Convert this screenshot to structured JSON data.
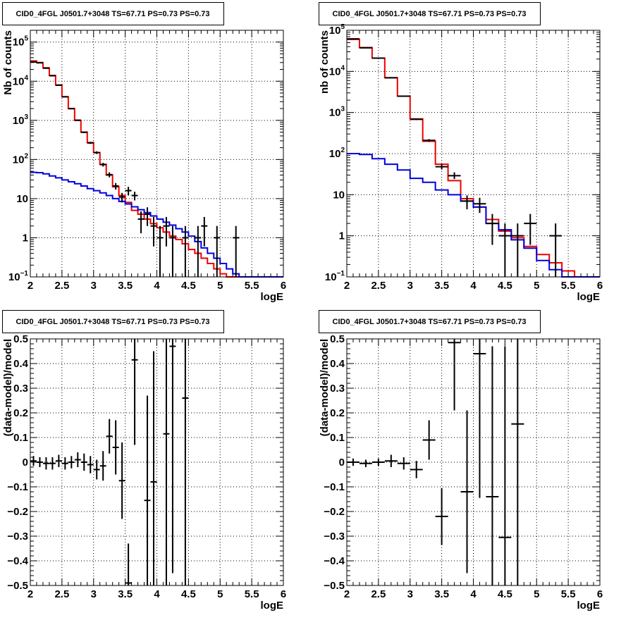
{
  "colors": {
    "data": "#000000",
    "total_model": "#ee0000",
    "source_model": "#0000dd"
  },
  "chart_data": [
    {
      "panel": "top-left",
      "type": "line",
      "title": "CID0_4FGL J0501.7+3048 TS=67.71 PS=0.73 PS=0.73",
      "xlabel": "logE",
      "ylabel": "Nb of counts",
      "xlim": [
        2,
        6
      ],
      "ylim": [
        0.1,
        200000
      ],
      "ylog": true,
      "grid": true,
      "xticks": [
        "2",
        "2.5",
        "3",
        "3.5",
        "4",
        "4.5",
        "5",
        "5.5",
        "6"
      ],
      "yticks": [
        {
          "v": 0.1,
          "base": "10",
          "exp": "−1"
        },
        {
          "v": 1,
          "label": "1"
        },
        {
          "v": 10,
          "label": "10"
        },
        {
          "v": 100,
          "base": "10",
          "exp": "2"
        },
        {
          "v": 1000,
          "base": "10",
          "exp": "3"
        },
        {
          "v": 10000,
          "base": "10",
          "exp": "4"
        },
        {
          "v": 100000,
          "base": "10",
          "exp": "5"
        }
      ],
      "bin_edges": [
        2.0,
        2.1,
        2.2,
        2.3,
        2.4,
        2.5,
        2.6,
        2.7,
        2.8,
        2.9,
        3.0,
        3.1,
        3.2,
        3.3,
        3.4,
        3.5,
        3.6,
        3.7,
        3.8,
        3.9,
        4.0,
        4.1,
        4.2,
        4.3,
        4.4,
        4.5,
        4.6,
        4.7,
        4.8,
        4.9,
        5.0,
        5.1,
        5.2,
        5.3,
        5.4,
        5.5,
        5.6,
        5.7,
        5.8,
        5.9,
        6.0
      ],
      "series": [
        {
          "style": "total_model",
          "values": [
            33000,
            30000,
            22000,
            14000,
            8000,
            4000,
            2000,
            1000,
            500,
            270,
            150,
            75,
            40,
            20,
            12,
            8,
            5,
            4,
            3,
            2.3,
            1.8,
            1.4,
            1.1,
            0.9,
            0.7,
            0.5,
            0.4,
            0.3,
            0.22,
            0.16,
            0.12,
            0.1,
            0.1,
            0.1,
            0.1,
            0.1,
            0.1,
            0.1,
            0.1,
            0.1
          ]
        },
        {
          "style": "source_model",
          "values": [
            47,
            46,
            43,
            38,
            34,
            30,
            27,
            24,
            21,
            18,
            16,
            14,
            12,
            10,
            8.5,
            7.3,
            6.2,
            5.2,
            4.4,
            3.6,
            3.0,
            2.5,
            2.1,
            1.7,
            1.4,
            1.1,
            0.8,
            0.55,
            0.4,
            0.3,
            0.22,
            0.16,
            0.12,
            0.1,
            0.1,
            0.1,
            0.1,
            0.1,
            0.1,
            0.1
          ]
        }
      ],
      "points": [
        {
          "x": 2.05,
          "y": 31000,
          "lo": 30800,
          "hi": 31200
        },
        {
          "x": 2.15,
          "y": 29500,
          "lo": 29300,
          "hi": 29700
        },
        {
          "x": 2.25,
          "y": 21500,
          "lo": 21300,
          "hi": 21700
        },
        {
          "x": 2.35,
          "y": 13800,
          "lo": 13600,
          "hi": 14000
        },
        {
          "x": 2.45,
          "y": 7900,
          "lo": 7800,
          "hi": 8000
        },
        {
          "x": 2.55,
          "y": 4000,
          "lo": 3940,
          "hi": 4060
        },
        {
          "x": 2.65,
          "y": 1990,
          "lo": 1950,
          "hi": 2030
        },
        {
          "x": 2.75,
          "y": 1010,
          "lo": 980,
          "hi": 1040
        },
        {
          "x": 2.85,
          "y": 495,
          "lo": 475,
          "hi": 515
        },
        {
          "x": 2.95,
          "y": 265,
          "lo": 250,
          "hi": 280
        },
        {
          "x": 3.05,
          "y": 150,
          "lo": 138,
          "hi": 162
        },
        {
          "x": 3.15,
          "y": 74,
          "lo": 66,
          "hi": 82
        },
        {
          "x": 3.25,
          "y": 41,
          "lo": 35,
          "hi": 47
        },
        {
          "x": 3.35,
          "y": 21,
          "lo": 17,
          "hi": 25
        },
        {
          "x": 3.45,
          "y": 11,
          "lo": 8,
          "hi": 14
        },
        {
          "x": 3.55,
          "y": 16,
          "lo": 12,
          "hi": 20
        },
        {
          "x": 3.65,
          "y": 12,
          "lo": 9,
          "hi": 15
        },
        {
          "x": 3.75,
          "y": 3,
          "lo": 1.3,
          "hi": 4.7
        },
        {
          "x": 3.85,
          "y": 4,
          "lo": 2,
          "hi": 6
        },
        {
          "x": 3.95,
          "y": 2,
          "lo": 0.6,
          "hi": 3.4
        },
        {
          "x": 4.05,
          "y": 1,
          "lo": 0.1,
          "hi": 2
        },
        {
          "x": 4.15,
          "y": 2,
          "lo": 0.6,
          "hi": 3.4
        },
        {
          "x": 4.25,
          "y": 1,
          "lo": 0.1,
          "hi": 2
        },
        {
          "x": 4.45,
          "y": 1,
          "lo": 0.1,
          "hi": 2
        },
        {
          "x": 4.65,
          "y": 1,
          "lo": 0.1,
          "hi": 2
        },
        {
          "x": 4.75,
          "y": 2,
          "lo": 0.6,
          "hi": 3.4
        },
        {
          "x": 4.95,
          "y": 1,
          "lo": 0.1,
          "hi": 2
        },
        {
          "x": 5.25,
          "y": 1,
          "lo": 0.1,
          "hi": 2
        }
      ]
    },
    {
      "panel": "top-right",
      "type": "line",
      "title": "CID0_4FGL J0501.7+3048 TS=67.71 PS=0.73 PS=0.73",
      "xlabel": "logE",
      "ylabel": "nb of counts",
      "xlim": [
        2,
        6
      ],
      "ylim": [
        0.1,
        100000
      ],
      "ylog": true,
      "grid": true,
      "xticks": [
        "2",
        "2.5",
        "3",
        "3.5",
        "4",
        "4.5",
        "5",
        "5.5",
        "6"
      ],
      "yticks": [
        {
          "v": 0.1,
          "base": "10",
          "exp": "−1"
        },
        {
          "v": 1,
          "label": "1"
        },
        {
          "v": 10,
          "label": "10"
        },
        {
          "v": 100,
          "base": "10",
          "exp": "2"
        },
        {
          "v": 1000,
          "base": "10",
          "exp": "3"
        },
        {
          "v": 10000,
          "base": "10",
          "exp": "4"
        },
        {
          "v": 100000,
          "base": "10",
          "exp": "5"
        }
      ],
      "bin_edges": [
        2.0,
        2.2,
        2.4,
        2.6,
        2.8,
        3.0,
        3.2,
        3.4,
        3.6,
        3.8,
        4.0,
        4.2,
        4.4,
        4.6,
        4.8,
        5.0,
        5.2,
        5.4,
        5.6,
        5.8,
        6.0
      ],
      "series": [
        {
          "style": "total_model",
          "values": [
            60000,
            38000,
            21000,
            7000,
            2500,
            700,
            200,
            55,
            22,
            8,
            5,
            2.5,
            1.3,
            0.9,
            0.55,
            0.35,
            0.22,
            0.14,
            0.1,
            0.1
          ]
        },
        {
          "style": "source_model",
          "values": [
            100,
            95,
            75,
            55,
            40,
            25,
            20,
            13,
            10,
            7,
            5,
            2,
            1.4,
            0.8,
            0.5,
            0.25,
            0.15,
            0.1,
            0.1,
            0.1
          ]
        }
      ],
      "points": [
        {
          "x": 2.1,
          "y": 62000,
          "lo": 61700,
          "hi": 62300
        },
        {
          "x": 2.3,
          "y": 37500,
          "lo": 37200,
          "hi": 37800
        },
        {
          "x": 2.5,
          "y": 21000,
          "lo": 20800,
          "hi": 21200
        },
        {
          "x": 2.7,
          "y": 7000,
          "lo": 6900,
          "hi": 7100
        },
        {
          "x": 2.9,
          "y": 2500,
          "lo": 2450,
          "hi": 2550
        },
        {
          "x": 3.1,
          "y": 680,
          "lo": 655,
          "hi": 705
        },
        {
          "x": 3.3,
          "y": 210,
          "lo": 195,
          "hi": 225
        },
        {
          "x": 3.5,
          "y": 48,
          "lo": 41,
          "hi": 55
        },
        {
          "x": 3.7,
          "y": 29,
          "lo": 24,
          "hi": 35
        },
        {
          "x": 3.9,
          "y": 7,
          "lo": 4.4,
          "hi": 9.6
        },
        {
          "x": 4.1,
          "y": 6,
          "lo": 3.6,
          "hi": 8.4
        },
        {
          "x": 4.3,
          "y": 2,
          "lo": 0.6,
          "hi": 3.4
        },
        {
          "x": 4.5,
          "y": 1,
          "lo": 0.1,
          "hi": 2
        },
        {
          "x": 4.7,
          "y": 1,
          "lo": 0.1,
          "hi": 2
        },
        {
          "x": 4.9,
          "y": 2,
          "lo": 0.6,
          "hi": 3.4
        },
        {
          "x": 5.3,
          "y": 1,
          "lo": 0.1,
          "hi": 2
        }
      ]
    },
    {
      "panel": "bottom-left",
      "type": "scatter",
      "title": "CID0_4FGL J0501.7+3048 TS=67.71 PS=0.73 PS=0.73",
      "xlabel": "logE",
      "ylabel": "(data-model)/model",
      "xlim": [
        2,
        6
      ],
      "ylim": [
        -0.5,
        0.5
      ],
      "ylog": false,
      "grid": true,
      "xticks": [
        "2",
        "2.5",
        "3",
        "3.5",
        "4",
        "4.5",
        "5",
        "5.5",
        "6"
      ],
      "yticks": [
        {
          "v": -0.5,
          "label": "−0.5"
        },
        {
          "v": -0.4,
          "label": "−0.4"
        },
        {
          "v": -0.3,
          "label": "−0.3"
        },
        {
          "v": -0.2,
          "label": "−0.2"
        },
        {
          "v": -0.1,
          "label": "−0.1"
        },
        {
          "v": 0,
          "label": "0"
        },
        {
          "v": 0.1,
          "label": "0.1"
        },
        {
          "v": 0.2,
          "label": "0.2"
        },
        {
          "v": 0.3,
          "label": "0.3"
        },
        {
          "v": 0.4,
          "label": "0.4"
        },
        {
          "v": 0.5,
          "label": "0.5"
        }
      ],
      "points": [
        {
          "x": 2.05,
          "y": 0.005,
          "lo": -0.015,
          "hi": 0.025
        },
        {
          "x": 2.15,
          "y": 0.0,
          "lo": -0.02,
          "hi": 0.02
        },
        {
          "x": 2.25,
          "y": -0.005,
          "lo": -0.03,
          "hi": 0.02
        },
        {
          "x": 2.35,
          "y": -0.005,
          "lo": -0.03,
          "hi": 0.02
        },
        {
          "x": 2.45,
          "y": 0.005,
          "lo": -0.02,
          "hi": 0.03
        },
        {
          "x": 2.55,
          "y": -0.005,
          "lo": -0.03,
          "hi": 0.02
        },
        {
          "x": 2.65,
          "y": 0.0,
          "lo": -0.025,
          "hi": 0.025
        },
        {
          "x": 2.75,
          "y": 0.01,
          "lo": -0.02,
          "hi": 0.04
        },
        {
          "x": 2.85,
          "y": 0.0,
          "lo": -0.035,
          "hi": 0.035
        },
        {
          "x": 2.95,
          "y": -0.01,
          "lo": -0.045,
          "hi": 0.025
        },
        {
          "x": 3.05,
          "y": -0.03,
          "lo": -0.07,
          "hi": 0.01
        },
        {
          "x": 3.15,
          "y": -0.015,
          "lo": -0.075,
          "hi": 0.045
        },
        {
          "x": 3.25,
          "y": 0.105,
          "lo": 0.035,
          "hi": 0.175
        },
        {
          "x": 3.35,
          "y": 0.06,
          "lo": -0.05,
          "hi": 0.17
        },
        {
          "x": 3.45,
          "y": -0.075,
          "lo": -0.23,
          "hi": 0.08
        },
        {
          "x": 3.55,
          "y": -0.49,
          "lo": -0.65,
          "hi": -0.33
        },
        {
          "x": 3.65,
          "y": 0.415,
          "lo": 0.07,
          "hi": 0.76
        },
        {
          "x": 3.85,
          "y": -0.155,
          "lo": -0.58,
          "hi": 0.27
        },
        {
          "x": 3.95,
          "y": -0.08,
          "lo": -0.61,
          "hi": 0.45
        },
        {
          "x": 4.15,
          "y": 0.115,
          "lo": -0.6,
          "hi": 0.83
        },
        {
          "x": 4.25,
          "y": 0.47,
          "lo": -0.45,
          "hi": 1.39
        },
        {
          "x": 4.45,
          "y": 0.26,
          "lo": -0.65,
          "hi": 1.17
        }
      ]
    },
    {
      "panel": "bottom-right",
      "type": "scatter",
      "title": "CID0_4FGL J0501.7+3048 TS=67.71 PS=0.73 PS=0.73",
      "xlabel": "logE",
      "ylabel": "(data-model)/model",
      "xlim": [
        2,
        6
      ],
      "ylim": [
        -0.5,
        0.5
      ],
      "ylog": false,
      "grid": true,
      "xticks": [
        "2",
        "2.5",
        "3",
        "3.5",
        "4",
        "4.5",
        "5",
        "5.5",
        "6"
      ],
      "yticks": [
        {
          "v": -0.5,
          "label": "−0.5"
        },
        {
          "v": -0.4,
          "label": "−0.4"
        },
        {
          "v": -0.3,
          "label": "−0.3"
        },
        {
          "v": -0.2,
          "label": "−0.2"
        },
        {
          "v": -0.1,
          "label": "−0.1"
        },
        {
          "v": 0,
          "label": "0"
        },
        {
          "v": 0.1,
          "label": "0.1"
        },
        {
          "v": 0.2,
          "label": "0.2"
        },
        {
          "v": 0.3,
          "label": "0.3"
        },
        {
          "v": 0.4,
          "label": "0.4"
        },
        {
          "v": 0.5,
          "label": "0.5"
        }
      ],
      "points": [
        {
          "x": 2.1,
          "y": 0.0,
          "lo": -0.015,
          "hi": 0.015
        },
        {
          "x": 2.3,
          "y": -0.005,
          "lo": -0.02,
          "hi": 0.01
        },
        {
          "x": 2.5,
          "y": 0.0,
          "lo": -0.015,
          "hi": 0.015
        },
        {
          "x": 2.7,
          "y": 0.005,
          "lo": -0.02,
          "hi": 0.03
        },
        {
          "x": 2.9,
          "y": -0.005,
          "lo": -0.03,
          "hi": 0.02
        },
        {
          "x": 3.1,
          "y": -0.03,
          "lo": -0.065,
          "hi": 0.005
        },
        {
          "x": 3.3,
          "y": 0.09,
          "lo": 0.01,
          "hi": 0.17
        },
        {
          "x": 3.5,
          "y": -0.22,
          "lo": -0.335,
          "hi": -0.105
        },
        {
          "x": 3.7,
          "y": 0.485,
          "lo": 0.21,
          "hi": 0.76
        },
        {
          "x": 3.9,
          "y": -0.12,
          "lo": -0.45,
          "hi": 0.21
        },
        {
          "x": 4.1,
          "y": 0.44,
          "lo": -0.145,
          "hi": 1.03
        },
        {
          "x": 4.3,
          "y": -0.14,
          "lo": -0.6,
          "hi": 0.47
        },
        {
          "x": 4.5,
          "y": -0.305,
          "lo": -0.6,
          "hi": 0.47
        },
        {
          "x": 4.7,
          "y": 0.155,
          "lo": -0.6,
          "hi": 1.3
        }
      ]
    }
  ]
}
